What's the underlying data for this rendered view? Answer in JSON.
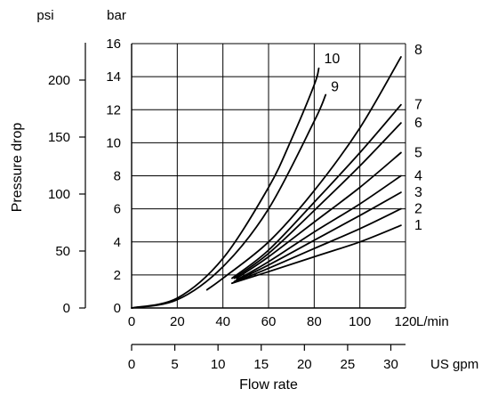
{
  "chart_data": {
    "type": "line",
    "xlabel": "Flow rate",
    "ylabel": "Pressure drop",
    "x_unit_primary": "L/min",
    "x_unit_secondary": "US gpm",
    "y_unit_primary": "bar",
    "y_unit_secondary": "psi",
    "x_primary": {
      "range": [
        0,
        120
      ],
      "ticks": [
        "0",
        "20",
        "40",
        "60",
        "80",
        "100",
        "120"
      ]
    },
    "x_secondary": {
      "range": [
        0,
        31.7
      ],
      "ticks": [
        "0",
        "5",
        "10",
        "15",
        "20",
        "25",
        "30"
      ]
    },
    "y_primary": {
      "range": [
        0,
        16
      ],
      "ticks": [
        "0",
        "2",
        "4",
        "6",
        "8",
        "10",
        "12",
        "14",
        "16"
      ]
    },
    "y_secondary": {
      "range": [
        0,
        232
      ],
      "ticks": [
        "0",
        "50",
        "100",
        "150",
        "200"
      ]
    },
    "grid": true,
    "series": [
      {
        "name": "1",
        "x": [
          44,
          60,
          80,
          100,
          118
        ],
        "y": [
          1.5,
          2.2,
          3.1,
          4.0,
          5.0
        ]
      },
      {
        "name": "2",
        "x": [
          44,
          60,
          80,
          100,
          118
        ],
        "y": [
          1.5,
          2.4,
          3.6,
          4.8,
          6.0
        ]
      },
      {
        "name": "3",
        "x": [
          45,
          60,
          80,
          100,
          118
        ],
        "y": [
          1.6,
          2.6,
          4.1,
          5.6,
          7.0
        ]
      },
      {
        "name": "4",
        "x": [
          46,
          60,
          80,
          100,
          118
        ],
        "y": [
          1.7,
          2.8,
          4.6,
          6.3,
          8.0
        ]
      },
      {
        "name": "5",
        "x": [
          46,
          60,
          80,
          100,
          118
        ],
        "y": [
          1.8,
          3.1,
          5.2,
          7.3,
          9.4
        ]
      },
      {
        "name": "6",
        "x": [
          45,
          60,
          80,
          100,
          118
        ],
        "y": [
          1.8,
          3.3,
          5.9,
          8.6,
          11.2
        ]
      },
      {
        "name": "7",
        "x": [
          44,
          60,
          80,
          100,
          118
        ],
        "y": [
          1.8,
          3.5,
          6.4,
          9.4,
          12.3
        ]
      },
      {
        "name": "8",
        "x": [
          33,
          40,
          60,
          80,
          100,
          118
        ],
        "y": [
          1.1,
          1.8,
          4.0,
          7.1,
          10.9,
          15.2
        ]
      },
      {
        "name": "9",
        "x": [
          0,
          20,
          40,
          60,
          80,
          85
        ],
        "y": [
          0,
          0.5,
          2.5,
          6.0,
          11.3,
          12.9
        ]
      },
      {
        "name": "10",
        "x": [
          0,
          20,
          40,
          60,
          70,
          80,
          82
        ],
        "y": [
          0,
          0.6,
          3.0,
          7.3,
          10.2,
          13.5,
          14.5
        ]
      }
    ]
  }
}
